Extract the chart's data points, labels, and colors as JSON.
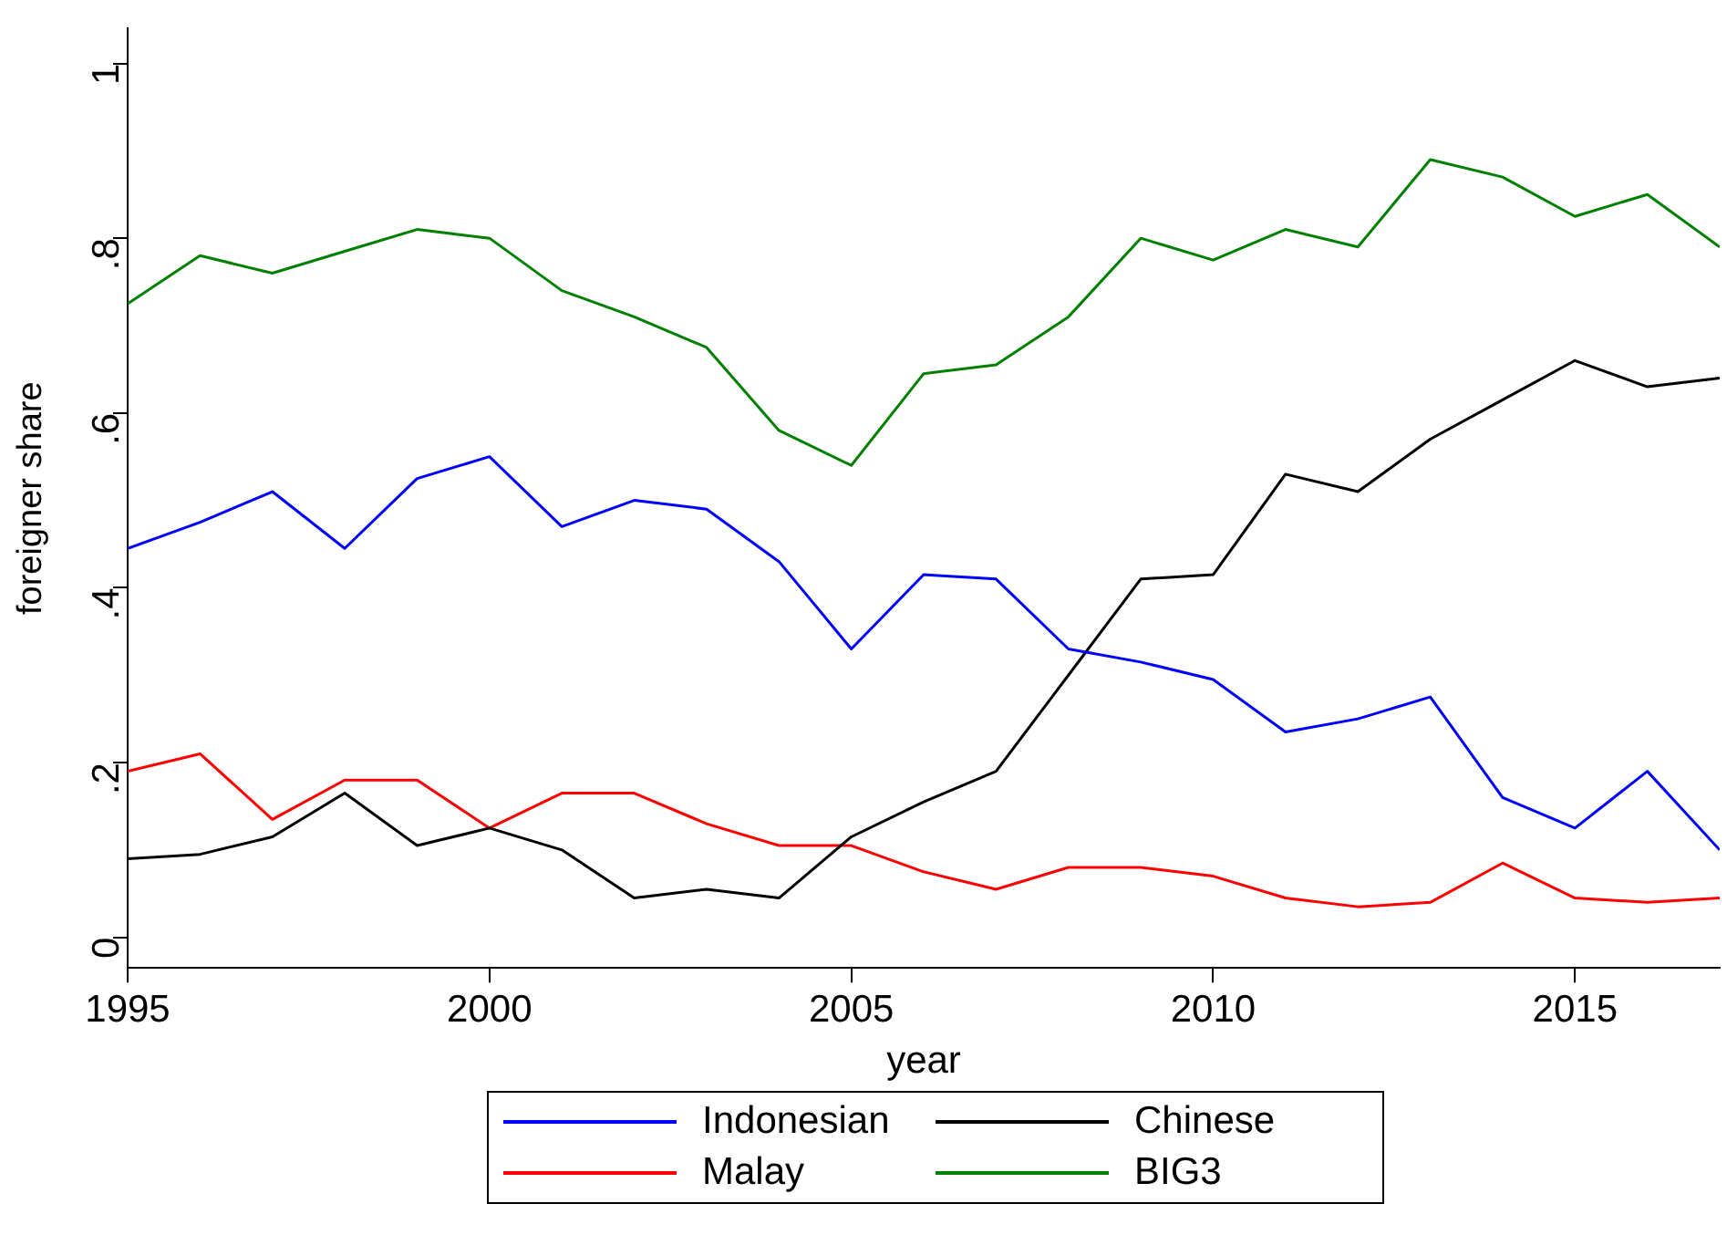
{
  "chart_data": {
    "type": "line",
    "xlabel": "year",
    "ylabel": "foreigner share",
    "x": [
      1995,
      1996,
      1997,
      1998,
      1999,
      2000,
      2001,
      2002,
      2003,
      2004,
      2005,
      2006,
      2007,
      2008,
      2009,
      2010,
      2011,
      2012,
      2013,
      2014,
      2015,
      2016,
      2017
    ],
    "series": [
      {
        "name": "Indonesian",
        "color": "#0000ff",
        "values": [
          0.445,
          0.475,
          0.51,
          0.445,
          0.525,
          0.55,
          0.47,
          0.5,
          0.49,
          0.43,
          0.33,
          0.415,
          0.41,
          0.33,
          0.315,
          0.295,
          0.235,
          0.25,
          0.275,
          0.16,
          0.125,
          0.19,
          0.1
        ]
      },
      {
        "name": "Chinese",
        "color": "#000000",
        "values": [
          0.09,
          0.095,
          0.115,
          0.165,
          0.105,
          0.125,
          0.1,
          0.045,
          0.055,
          0.045,
          0.115,
          0.155,
          0.19,
          0.3,
          0.41,
          0.415,
          0.53,
          0.51,
          0.57,
          0.615,
          0.66,
          0.63,
          0.64
        ]
      },
      {
        "name": "Malay",
        "color": "#ff0000",
        "values": [
          0.19,
          0.21,
          0.135,
          0.18,
          0.18,
          0.125,
          0.165,
          0.165,
          0.13,
          0.105,
          0.105,
          0.075,
          0.055,
          0.08,
          0.08,
          0.07,
          0.045,
          0.035,
          0.04,
          0.085,
          0.045,
          0.04,
          0.045
        ]
      },
      {
        "name": "BIG3",
        "color": "#008000",
        "values": [
          0.725,
          0.78,
          0.76,
          0.785,
          0.81,
          0.8,
          0.74,
          0.71,
          0.675,
          0.58,
          0.54,
          0.645,
          0.655,
          0.71,
          0.8,
          0.775,
          0.81,
          0.79,
          0.89,
          0.87,
          0.825,
          0.85,
          0.79
        ]
      }
    ],
    "xlim": [
      1995,
      2017
    ],
    "xticks": [
      1995,
      2000,
      2005,
      2010,
      2015
    ],
    "ylim": [
      -0.035,
      1.04
    ],
    "yticks": [
      0,
      {
        "value": 0.2,
        "label": ".2"
      },
      {
        "value": 0.4,
        "label": ".4"
      },
      {
        "value": 0.6,
        "label": ".6"
      },
      {
        "value": 0.8,
        "label": ".8"
      },
      1
    ],
    "grid": false,
    "legend": "bottom",
    "marker": "none",
    "line_style": "solid"
  }
}
